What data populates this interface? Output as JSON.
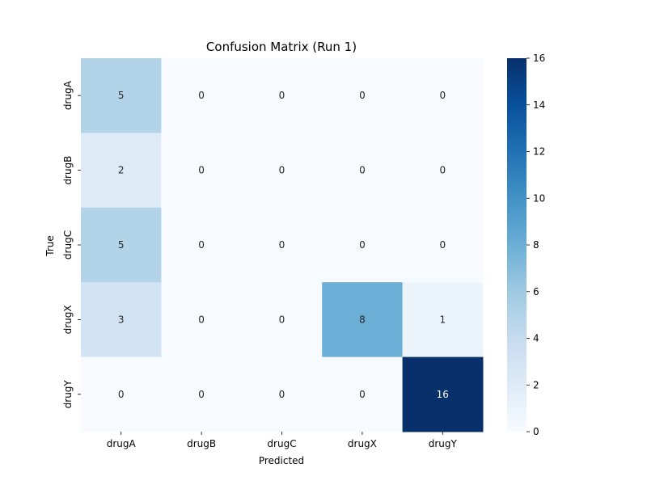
{
  "chart_data": {
    "type": "heatmap",
    "title": "Confusion Matrix (Run 1)",
    "xlabel": "Predicted",
    "ylabel": "True",
    "x_categories": [
      "drugA",
      "drugB",
      "drugC",
      "drugX",
      "drugY"
    ],
    "y_categories": [
      "drugA",
      "drugB",
      "drugC",
      "drugX",
      "drugY"
    ],
    "values": [
      [
        5,
        0,
        0,
        0,
        0
      ],
      [
        2,
        0,
        0,
        0,
        0
      ],
      [
        5,
        0,
        0,
        0,
        0
      ],
      [
        3,
        0,
        0,
        8,
        1
      ],
      [
        0,
        0,
        0,
        0,
        16
      ]
    ],
    "colormap": "Blues",
    "color_range": [
      0,
      16
    ],
    "colorbar_ticks": [
      0,
      2,
      4,
      6,
      8,
      10,
      12,
      14,
      16
    ]
  }
}
